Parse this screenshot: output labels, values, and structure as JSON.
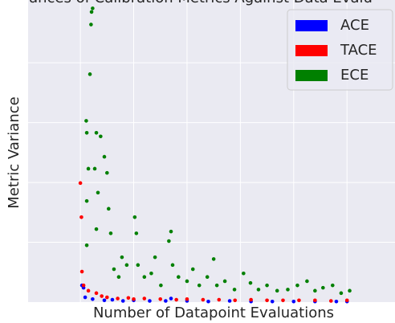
{
  "chart_data": {
    "type": "scatter",
    "title": "ances of Calibration Metrics Against Data Evalu",
    "x_label": "Number of Datapoint Evaluations",
    "y_label": "Metric Variance",
    "xlim": [
      -0.98,
      5.9
    ],
    "ylim": [
      0,
      5.05
    ],
    "xgrid": [
      0,
      1,
      2,
      3,
      4,
      5
    ],
    "ygrid": [
      1,
      2,
      3,
      4
    ],
    "legend": "upper right",
    "series": [
      {
        "name": "ACE",
        "color": "#0000ff",
        "x": [
          0.03,
          0.06,
          0.09,
          0.23,
          0.45,
          0.6,
          0.8,
          1.0,
          1.3,
          1.6,
          1.7,
          2.0,
          2.4,
          2.8,
          3.2,
          3.6,
          4.0,
          4.4,
          4.8,
          5.0
        ],
        "y": [
          0.28,
          0.24,
          0.08,
          0.05,
          0.03,
          0.04,
          0.02,
          0.03,
          0.02,
          0.02,
          0.06,
          0.02,
          0.01,
          0.02,
          0.01,
          0.01,
          0.01,
          0.01,
          0.01,
          0.01
        ]
      },
      {
        "name": "TACE",
        "color": "#ff0000",
        "x": [
          0.0,
          0.02,
          0.03,
          0.06,
          0.15,
          0.3,
          0.4,
          0.5,
          0.7,
          0.9,
          1.0,
          1.2,
          1.5,
          1.8,
          2.0,
          2.3,
          2.6,
          2.9,
          3.2,
          3.5,
          3.8,
          4.1,
          4.4,
          4.7,
          5.0
        ],
        "y": [
          1.99,
          1.42,
          0.51,
          0.28,
          0.19,
          0.15,
          0.1,
          0.08,
          0.06,
          0.07,
          0.05,
          0.06,
          0.05,
          0.04,
          0.05,
          0.04,
          0.04,
          0.03,
          0.04,
          0.03,
          0.03,
          0.03,
          0.03,
          0.02,
          0.03
        ]
      },
      {
        "name": "ECE",
        "color": "#008000",
        "x": [
          0.2,
          0.21,
          0.23,
          0.18,
          0.11,
          0.12,
          0.15,
          0.12,
          0.12,
          0.3,
          0.38,
          0.27,
          0.33,
          0.3,
          0.45,
          0.5,
          0.53,
          0.57,
          0.63,
          0.72,
          0.78,
          0.87,
          1.02,
          1.05,
          1.08,
          1.2,
          1.33,
          1.4,
          1.51,
          1.66,
          1.7,
          1.73,
          1.84,
          2.0,
          2.11,
          2.23,
          2.38,
          2.5,
          2.56,
          2.71,
          2.89,
          3.06,
          3.19,
          3.34,
          3.5,
          3.69,
          3.89,
          4.07,
          4.25,
          4.4,
          4.55,
          4.73,
          4.89,
          5.05
        ],
        "y": [
          4.64,
          4.85,
          4.91,
          3.81,
          3.03,
          2.83,
          2.23,
          1.69,
          0.95,
          2.83,
          2.77,
          2.23,
          1.83,
          1.22,
          2.43,
          2.16,
          1.56,
          1.15,
          0.55,
          0.42,
          0.75,
          0.62,
          1.42,
          1.15,
          0.62,
          0.42,
          0.48,
          0.75,
          0.28,
          1.02,
          1.18,
          0.62,
          0.42,
          0.35,
          0.55,
          0.28,
          0.42,
          0.72,
          0.28,
          0.35,
          0.21,
          0.48,
          0.32,
          0.21,
          0.28,
          0.19,
          0.21,
          0.28,
          0.35,
          0.19,
          0.24,
          0.28,
          0.15,
          0.19
        ]
      }
    ]
  }
}
